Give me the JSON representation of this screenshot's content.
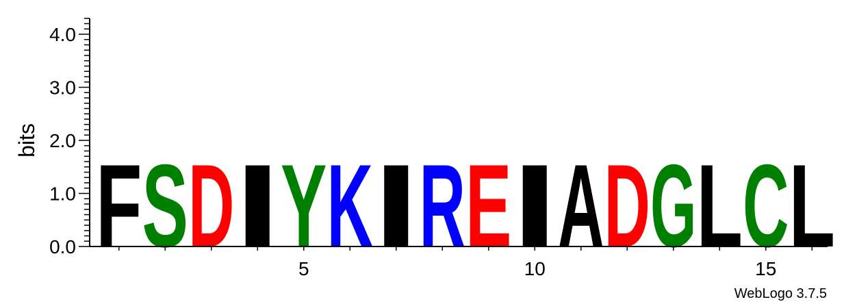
{
  "chart_data": {
    "type": "sequence-logo",
    "ylabel": "bits",
    "ylim": [
      0,
      4.3
    ],
    "yticks": [
      "0.0",
      "1.0",
      "2.0",
      "3.0",
      "4.0"
    ],
    "xticks": [
      "5",
      "10",
      "15"
    ],
    "positions": [
      1,
      2,
      3,
      4,
      5,
      6,
      7,
      8,
      9,
      10,
      11,
      12,
      13,
      14,
      15,
      16
    ],
    "letters": [
      {
        "letter": "F",
        "bits": 1.6,
        "color": "#000000"
      },
      {
        "letter": "S",
        "bits": 1.6,
        "color": "#008000"
      },
      {
        "letter": "D",
        "bits": 1.6,
        "color": "#ff0000"
      },
      {
        "letter": "I",
        "bits": 1.6,
        "color": "#000000"
      },
      {
        "letter": "Y",
        "bits": 1.6,
        "color": "#008000"
      },
      {
        "letter": "K",
        "bits": 1.6,
        "color": "#0000ff"
      },
      {
        "letter": "I",
        "bits": 1.6,
        "color": "#000000"
      },
      {
        "letter": "R",
        "bits": 1.6,
        "color": "#0000ff"
      },
      {
        "letter": "E",
        "bits": 1.6,
        "color": "#ff0000"
      },
      {
        "letter": "I",
        "bits": 1.6,
        "color": "#000000"
      },
      {
        "letter": "A",
        "bits": 1.6,
        "color": "#000000"
      },
      {
        "letter": "D",
        "bits": 1.6,
        "color": "#ff0000"
      },
      {
        "letter": "G",
        "bits": 1.6,
        "color": "#008000"
      },
      {
        "letter": "L",
        "bits": 1.6,
        "color": "#000000"
      },
      {
        "letter": "C",
        "bits": 1.6,
        "color": "#008000"
      },
      {
        "letter": "L",
        "bits": 1.6,
        "color": "#000000"
      }
    ]
  },
  "credit": "WebLogo 3.7.5"
}
